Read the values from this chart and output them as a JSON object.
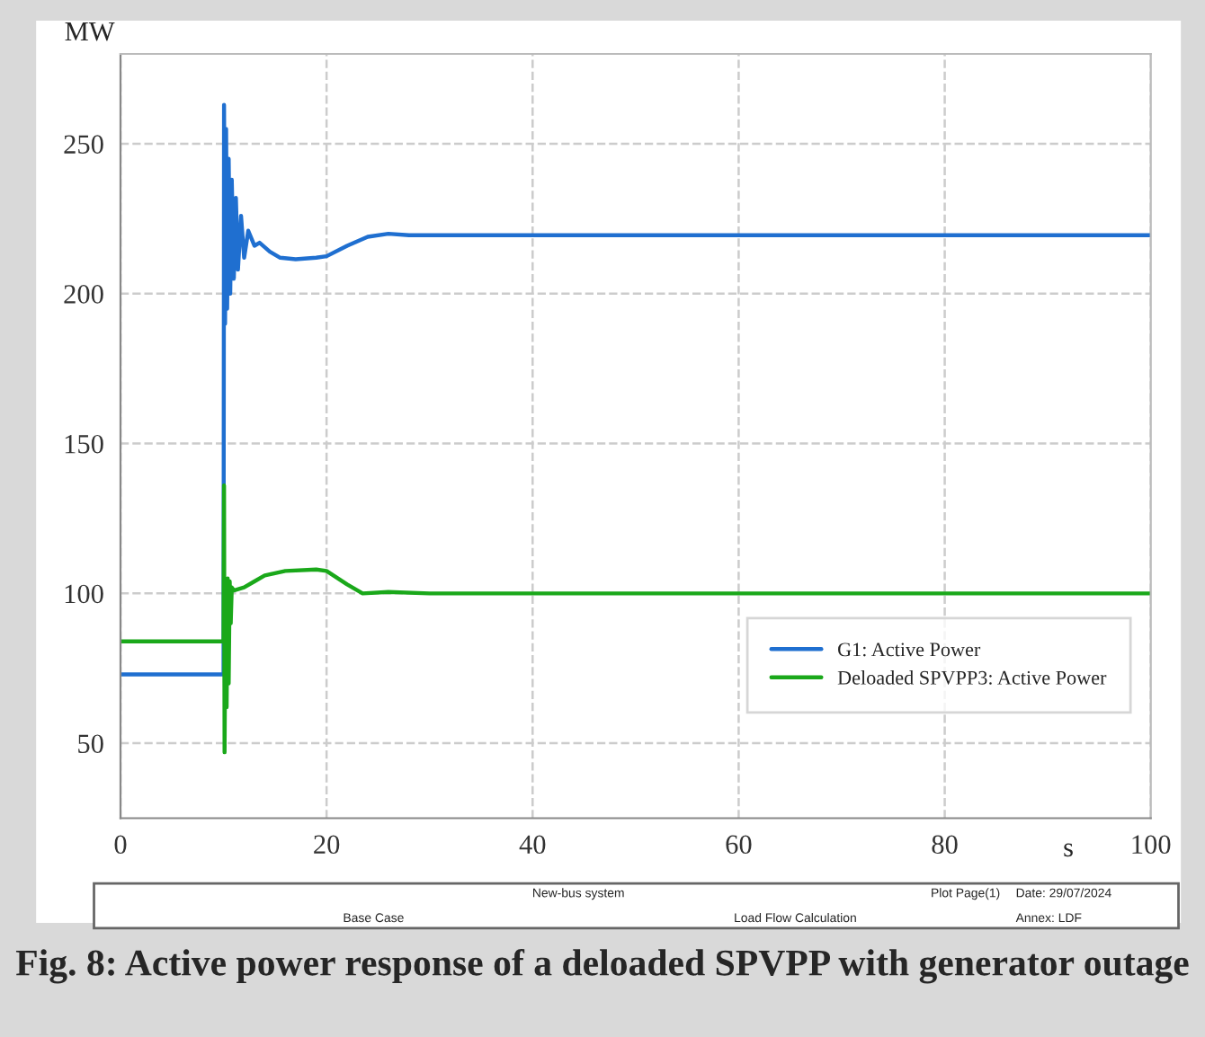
{
  "chart_data": {
    "type": "line",
    "title": "Fig. 8: Active power response of a deloaded SPVPP with generator outage",
    "xlabel": "s",
    "ylabel": "MW",
    "series": [
      {
        "name": "G1: Active Power",
        "color": "#1f6fd0",
        "x": [
          0,
          10,
          10.05,
          10.15,
          10.25,
          10.35,
          10.5,
          10.65,
          10.8,
          11,
          11.2,
          11.4,
          11.7,
          12,
          12.4,
          13,
          13.5,
          14.5,
          15.5,
          17,
          19,
          20,
          22,
          24,
          26,
          28,
          32,
          100
        ],
        "values": [
          73,
          73,
          263,
          190,
          255,
          195,
          245,
          200,
          238,
          205,
          232,
          208,
          226,
          212,
          221,
          216,
          217,
          214,
          212,
          211.5,
          212,
          212.5,
          216,
          219,
          220,
          219.5,
          219.5,
          219.5
        ]
      },
      {
        "name": "Deloaded SPVPP3: Active Power",
        "color": "#1aa81a",
        "x": [
          0,
          10,
          10.05,
          10.1,
          10.2,
          10.3,
          10.4,
          10.5,
          10.6,
          10.7,
          10.8,
          11,
          12,
          13,
          14,
          16,
          19,
          20,
          22,
          23.5,
          26,
          30,
          100
        ],
        "values": [
          84,
          84,
          136,
          47,
          104,
          62,
          105,
          70,
          104,
          90,
          102,
          101,
          102,
          104,
          106,
          107.5,
          108,
          107.5,
          103,
          100,
          100.5,
          100,
          100
        ]
      }
    ],
    "xlim": [
      0,
      100
    ],
    "xticks": [
      0,
      20,
      40,
      60,
      80,
      100
    ],
    "ylim": [
      25,
      280
    ],
    "yticks": [
      50,
      100,
      150,
      200,
      250
    ],
    "grid": true,
    "legend": "center right",
    "line_style": "solid",
    "annotations": [
      "New-bus system",
      "Base Case",
      "Load Flow Calculation",
      "Plot Page(1)",
      "Date: 29/07/2024",
      "Annex: LDF"
    ]
  }
}
